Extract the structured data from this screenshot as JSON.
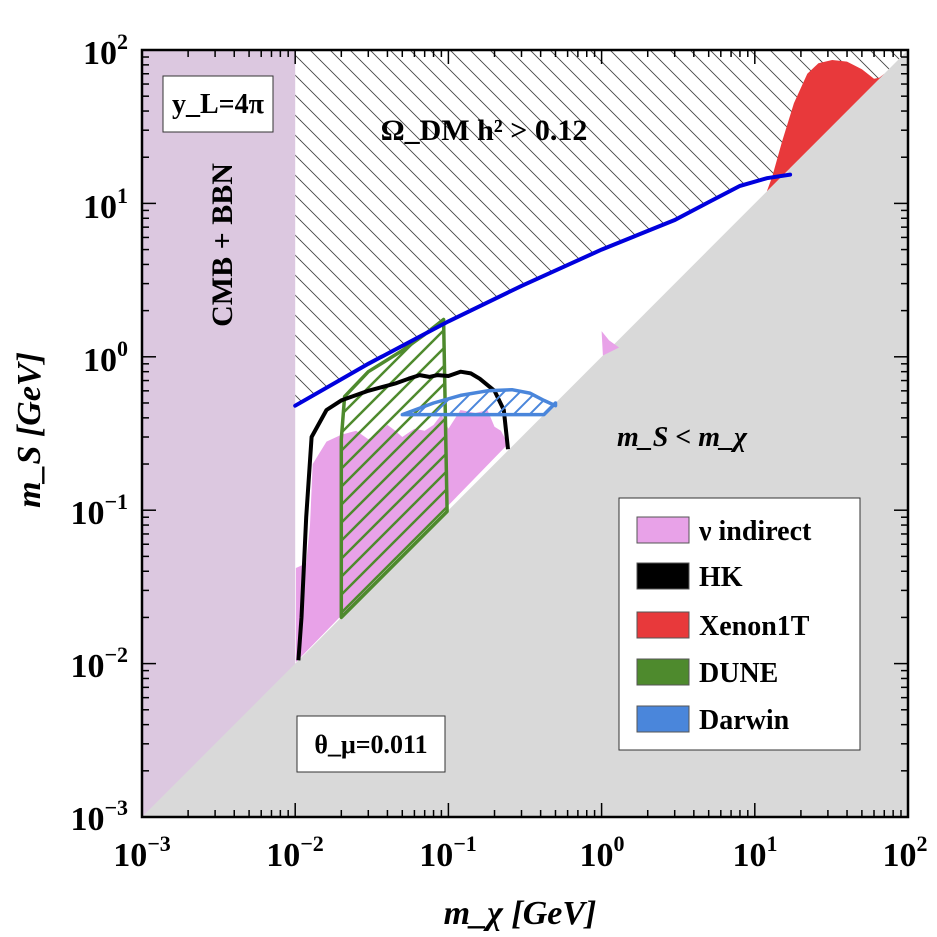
{
  "chart_data": {
    "type": "area",
    "xlabel": "m_χ [GeV]",
    "ylabel": "m_S [GeV]",
    "xscale": "log",
    "yscale": "log",
    "xlim": [
      0.001,
      100
    ],
    "ylim": [
      0.001,
      100
    ],
    "x_ticks": [
      {
        "base": "10",
        "exp": "−3"
      },
      {
        "base": "10",
        "exp": "−2"
      },
      {
        "base": "10",
        "exp": "−1"
      },
      {
        "base": "10",
        "exp": "0"
      },
      {
        "base": "10",
        "exp": "1"
      },
      {
        "base": "10",
        "exp": "2"
      }
    ],
    "y_ticks": [
      {
        "base": "10",
        "exp": "−3"
      },
      {
        "base": "10",
        "exp": "−2"
      },
      {
        "base": "10",
        "exp": "−1"
      },
      {
        "base": "10",
        "exp": "0"
      },
      {
        "base": "10",
        "exp": "1"
      },
      {
        "base": "10",
        "exp": "2"
      }
    ],
    "annotations": {
      "coupling": "y_L=4π",
      "mixing": "θ_μ=0.011",
      "relic": "Ω_DM h² > 0.12",
      "cmb": "CMB + BBN",
      "kinematic": "m_S < m_χ"
    },
    "legend": {
      "position": "bottom-right",
      "entries": [
        {
          "label": "ν indirect",
          "color": "#e8a2e8"
        },
        {
          "label": "HK",
          "color": "#000000"
        },
        {
          "label": "Xenon1T",
          "color": "#e8393b"
        },
        {
          "label": "DUNE",
          "color": "#4e8a2d"
        },
        {
          "label": "Darwin",
          "color": "#4a86db"
        }
      ]
    },
    "regions": {
      "cmb_bbn": {
        "name": "CMB + BBN",
        "color": "#dcc8e0",
        "x_max": 0.01
      },
      "kinematic": {
        "name": "m_S < m_χ",
        "color": "#d9d9d9",
        "condition": "m_S < m_χ"
      },
      "relic_boundary": {
        "name": "Ω_DM h² = 0.12",
        "color": "#0000dd",
        "points": [
          [
            0.01,
            0.48
          ],
          [
            0.03,
            0.9
          ],
          [
            0.1,
            1.7
          ],
          [
            0.3,
            2.9
          ],
          [
            1,
            5
          ],
          [
            3,
            7.8
          ],
          [
            5,
            10.2
          ],
          [
            8,
            13
          ],
          [
            12,
            14.6
          ],
          [
            17,
            15.4
          ]
        ]
      },
      "hk": {
        "name": "HK",
        "color": "#000000",
        "points": [
          [
            0.0105,
            0.0105
          ],
          [
            0.011,
            0.02
          ],
          [
            0.0118,
            0.09
          ],
          [
            0.0128,
            0.3
          ],
          [
            0.016,
            0.45
          ],
          [
            0.02,
            0.52
          ],
          [
            0.03,
            0.6
          ],
          [
            0.045,
            0.67
          ],
          [
            0.055,
            0.72
          ],
          [
            0.065,
            0.76
          ],
          [
            0.075,
            0.74
          ],
          [
            0.085,
            0.76
          ],
          [
            0.1,
            0.75
          ],
          [
            0.12,
            0.8
          ],
          [
            0.14,
            0.78
          ],
          [
            0.16,
            0.72
          ],
          [
            0.2,
            0.6
          ],
          [
            0.23,
            0.45
          ],
          [
            0.245,
            0.25
          ]
        ]
      },
      "dune": {
        "name": "DUNE",
        "color": "#4e8a2d",
        "points": [
          [
            0.02,
            0.02
          ],
          [
            0.02,
            0.29
          ],
          [
            0.021,
            0.55
          ],
          [
            0.03,
            0.8
          ],
          [
            0.05,
            1.1
          ],
          [
            0.07,
            1.4
          ],
          [
            0.093,
            1.75
          ],
          [
            0.098,
            0.098
          ]
        ]
      },
      "darwin": {
        "name": "Darwin",
        "color": "#4a86db",
        "points": [
          [
            0.05,
            0.42
          ],
          [
            0.08,
            0.5
          ],
          [
            0.12,
            0.56
          ],
          [
            0.18,
            0.6
          ],
          [
            0.26,
            0.61
          ],
          [
            0.34,
            0.58
          ],
          [
            0.42,
            0.52
          ],
          [
            0.5,
            0.48
          ]
        ]
      },
      "nu_indirect": {
        "name": "ν indirect",
        "color": "#e8a2e8",
        "points": [
          [
            0.0101,
            0.0102
          ],
          [
            0.0101,
            0.042
          ],
          [
            0.0118,
            0.045
          ],
          [
            0.0125,
            0.08
          ],
          [
            0.013,
            0.2
          ],
          [
            0.016,
            0.28
          ],
          [
            0.02,
            0.31
          ],
          [
            0.025,
            0.33
          ],
          [
            0.03,
            0.29
          ],
          [
            0.035,
            0.32
          ],
          [
            0.04,
            0.36
          ],
          [
            0.045,
            0.33
          ],
          [
            0.05,
            0.3
          ],
          [
            0.06,
            0.34
          ],
          [
            0.07,
            0.33
          ],
          [
            0.08,
            0.36
          ],
          [
            0.09,
            0.42
          ],
          [
            0.1,
            0.34
          ],
          [
            0.12,
            0.45
          ],
          [
            0.15,
            0.43
          ],
          [
            0.18,
            0.45
          ],
          [
            0.2,
            0.35
          ],
          [
            0.22,
            0.33
          ],
          [
            0.245,
            0.27
          ]
        ],
        "island": [
          [
            1,
            1.47
          ],
          [
            1.12,
            1.28
          ],
          [
            1.3,
            1.15
          ],
          [
            1.02,
            1.02
          ]
        ]
      },
      "xenon1t": {
        "name": "Xenon1T",
        "color": "#e8393b",
        "points": [
          [
            12,
            12
          ],
          [
            13,
            15
          ],
          [
            15,
            25
          ],
          [
            18,
            45
          ],
          [
            22,
            70
          ],
          [
            26,
            82
          ],
          [
            32,
            86
          ],
          [
            40,
            84
          ],
          [
            50,
            75
          ],
          [
            60,
            65
          ],
          [
            65,
            66
          ],
          [
            70,
            70
          ]
        ]
      }
    }
  }
}
